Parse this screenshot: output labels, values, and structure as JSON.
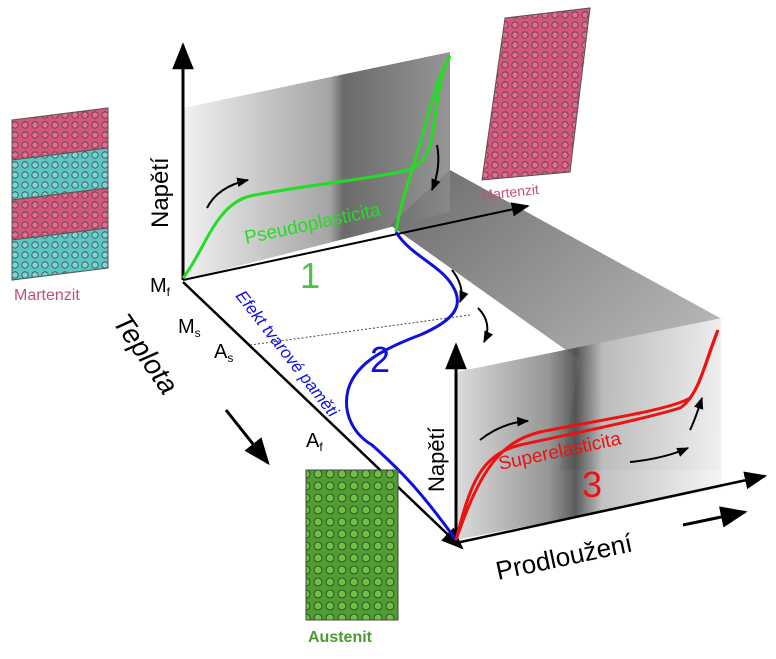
{
  "colors": {
    "pseudoplasticity": "#22dd22",
    "shape_memory": "#1010dd",
    "superelasticity": "#ee1111",
    "martensite_pink": "#d6557a",
    "martensite_cyan": "#5cc5c5",
    "austenite_green": "#55aa33",
    "martensite_label": "#c05078",
    "austenite_label": "#4a9a30"
  },
  "labels": {
    "stress_top": "Napětí",
    "stress_bottom": "Napětí",
    "temperature_axis": "Teplota",
    "elongation_axis": "Prodloužení",
    "Mf": "M",
    "Mf_sub": "f",
    "Ms": "M",
    "Ms_sub": "s",
    "As": "A",
    "As_sub": "s",
    "Af": "A",
    "Af_sub": "f",
    "pseudoplasticity": "Pseudoplasticita",
    "shape_memory_effect": "Efekt tvarové paměti",
    "superelasticity": "Superelasticita",
    "num1": "1",
    "num2": "2",
    "num3": "3",
    "martensite_left": "Martenzit",
    "martensite_right": "Martenzit",
    "austenite": "Austenit"
  }
}
